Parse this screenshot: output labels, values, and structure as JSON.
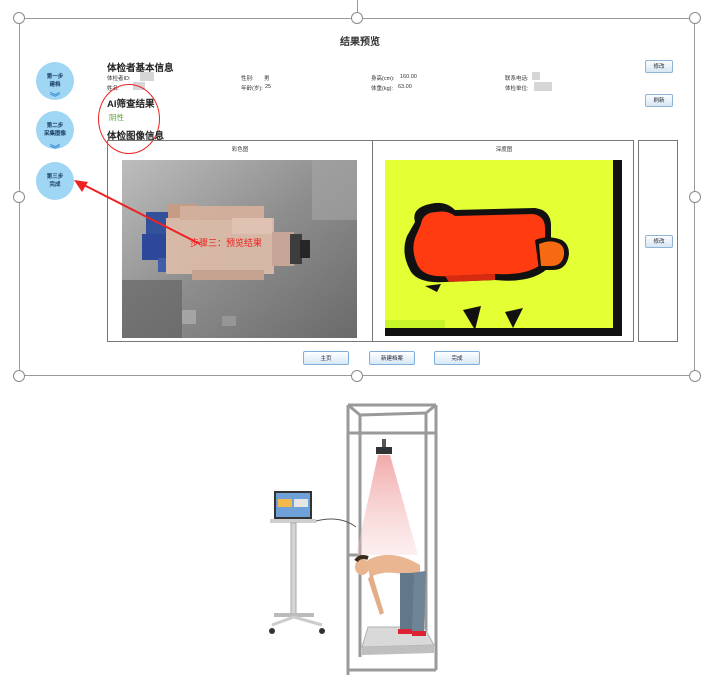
{
  "title": "结果预览",
  "steps": [
    {
      "line1": "第一步",
      "line2": "建档"
    },
    {
      "line1": "第二步",
      "line2": "采集图像"
    },
    {
      "line1": "第三步",
      "line2": "完成"
    }
  ],
  "basic_info": {
    "heading": "体检者基本信息",
    "id_label": "体检者ID:",
    "name_label": "姓名:",
    "gender_label": "性别:",
    "gender_value": "男",
    "age_label": "年龄(岁):",
    "age_value": "25",
    "height_label": "身高(cm):",
    "height_value": "160.00",
    "weight_label": "体重(kg):",
    "weight_value": "63.00",
    "phone_label": "联系电话:",
    "unit_label": "体检单位:"
  },
  "ai_result": {
    "heading": "AI筛查结果",
    "value": "阴性"
  },
  "image_info": {
    "heading": "体检图像信息",
    "color_caption": "彩色图",
    "depth_caption": "深度图"
  },
  "buttons": {
    "edit_top": "修改",
    "refresh": "刷新",
    "edit_image": "修改",
    "home": "主页",
    "new_record": "新建档案",
    "done": "完成"
  },
  "annotation": "步骤三：预览结果",
  "colors": {
    "step_circle": "#9ed6f3",
    "annotation": "#e22222",
    "result_green": "#5aa532",
    "depth_bg": "#e4ff33",
    "depth_body": "#ff3b12"
  }
}
